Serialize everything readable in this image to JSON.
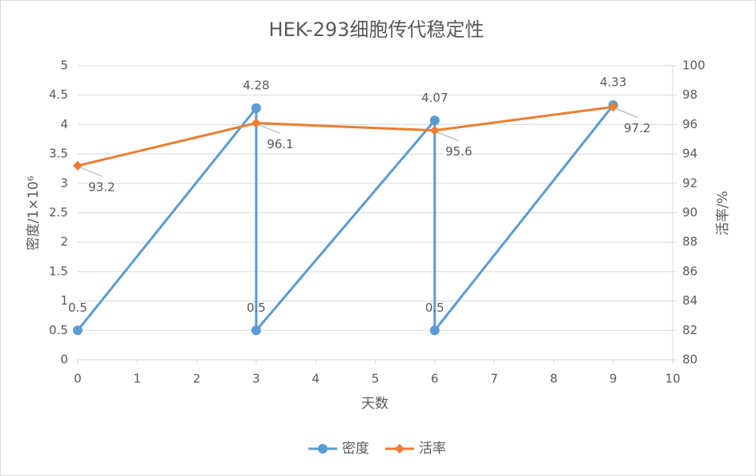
{
  "chart_data": {
    "type": "line",
    "title": "HEK-293细胞传代稳定性",
    "x_label": "天数",
    "y_label": "密度/1×10⁶",
    "y2_label": "活率/%",
    "xlim": [
      0,
      10
    ],
    "xticks": [
      0,
      1,
      2,
      3,
      4,
      5,
      6,
      7,
      8,
      9,
      10
    ],
    "ylim": [
      0,
      5
    ],
    "yticks": [
      0,
      0.5,
      1,
      1.5,
      2,
      2.5,
      3,
      3.5,
      4,
      4.5,
      5
    ],
    "y2lim": [
      80,
      100
    ],
    "y2ticks": [
      80,
      82,
      84,
      86,
      88,
      90,
      92,
      94,
      96,
      98,
      100
    ],
    "grid": true,
    "legend": "bottom",
    "series": [
      {
        "name": "密度",
        "color": "#5b9bd5",
        "x": [
          0,
          3,
          3,
          6,
          6,
          9
        ],
        "values": [
          0.5,
          4.28,
          0.5,
          4.07,
          0.5,
          4.33
        ]
      },
      {
        "name": "活率",
        "color": "#ed7d31",
        "axis": "y2",
        "x": [
          0,
          3,
          6,
          9
        ],
        "values": [
          93.2,
          96.1,
          95.6,
          97.2
        ]
      }
    ]
  }
}
